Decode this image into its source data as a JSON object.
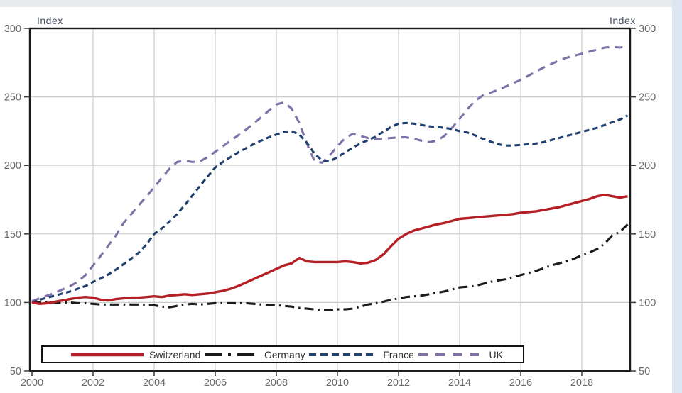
{
  "window": {
    "background": "#ffffff",
    "top_edge_color": "#e9eaed",
    "right_edge_color": "#dde5f0"
  },
  "chart_data": {
    "type": "line",
    "title": "",
    "y_label_left": "Index",
    "y_label_right": "Index",
    "x_ticks": [
      2000,
      2002,
      2004,
      2006,
      2008,
      2010,
      2012,
      2014,
      2016,
      2018
    ],
    "y_ticks": [
      50,
      100,
      150,
      200,
      250,
      300
    ],
    "x_range": [
      2000,
      2019.6
    ],
    "y_range": [
      50,
      300
    ],
    "grid": true,
    "legend_position": "bottom",
    "colors": {
      "grid": "#cccccc",
      "axis": "#1b1b1b",
      "tick": "#3a3a3a",
      "tick_label": "#6a6a6a",
      "axis_title": "#454e60",
      "legend_text": "#2f2f2f",
      "legend_border": "#111111"
    },
    "x": [
      2000,
      2000.25,
      2000.5,
      2000.75,
      2001,
      2001.25,
      2001.5,
      2001.75,
      2002,
      2002.25,
      2002.5,
      2002.75,
      2003,
      2003.25,
      2003.5,
      2003.75,
      2004,
      2004.25,
      2004.5,
      2004.75,
      2005,
      2005.25,
      2005.5,
      2005.75,
      2006,
      2006.25,
      2006.5,
      2006.75,
      2007,
      2007.25,
      2007.5,
      2007.75,
      2008,
      2008.25,
      2008.5,
      2008.75,
      2009,
      2009.25,
      2009.5,
      2009.75,
      2010,
      2010.25,
      2010.5,
      2010.75,
      2011,
      2011.25,
      2011.5,
      2011.75,
      2012,
      2012.25,
      2012.5,
      2012.75,
      2013,
      2013.25,
      2013.5,
      2013.75,
      2014,
      2014.25,
      2014.5,
      2014.75,
      2015,
      2015.25,
      2015.5,
      2015.75,
      2016,
      2016.25,
      2016.5,
      2016.75,
      2017,
      2017.25,
      2017.5,
      2017.75,
      2018,
      2018.25,
      2018.5,
      2018.75,
      2019,
      2019.25,
      2019.5
    ],
    "series": [
      {
        "name": "Switzerland",
        "color": "#b42025",
        "style": "solid",
        "values": [
          100,
          99,
          99.5,
          100.5,
          101.5,
          102.5,
          103.5,
          104,
          103.5,
          102,
          101.5,
          102.5,
          103,
          103.5,
          103.5,
          104,
          104.5,
          104,
          105,
          105.5,
          106,
          105.5,
          106,
          106.5,
          107.5,
          108.5,
          110,
          112,
          114.5,
          117,
          119.5,
          122,
          124.5,
          127,
          128.5,
          132.5,
          130,
          129.5,
          129.5,
          129.5,
          129.5,
          130,
          129.5,
          128.5,
          129,
          131,
          135,
          141,
          146.5,
          150,
          152.5,
          154,
          155.5,
          157,
          158,
          159.5,
          161,
          161.5,
          162,
          162.5,
          163,
          163.5,
          164,
          164.5,
          165.5,
          166,
          166.5,
          167.5,
          168.5,
          169.5,
          171,
          172.5,
          174,
          175.5,
          177.5,
          178.5,
          177.5,
          176.5,
          177.5
        ]
      },
      {
        "name": "Germany",
        "color": "#1a1a1a",
        "style": "dash-dot",
        "values": [
          100,
          100,
          100.5,
          100,
          100,
          100,
          99.5,
          99.5,
          99,
          98.5,
          98.5,
          98.5,
          98.5,
          98.5,
          98.5,
          98,
          98,
          97,
          96.5,
          97.5,
          98.5,
          99,
          98.5,
          99,
          99.5,
          99.5,
          99.5,
          99.5,
          99.5,
          99,
          98.5,
          98,
          98,
          97.5,
          97,
          96,
          95.5,
          95,
          94.5,
          94.5,
          95,
          95,
          95.5,
          97,
          98.5,
          99.5,
          100.5,
          102,
          103,
          104,
          104.5,
          105,
          106,
          107,
          108,
          109.5,
          111,
          111.5,
          112,
          113.5,
          115,
          116,
          117,
          118.5,
          120,
          121.5,
          123,
          125,
          127,
          128.5,
          130,
          132,
          134.5,
          136.5,
          139,
          143,
          149,
          151.5,
          157
        ]
      },
      {
        "name": "France",
        "color": "#20406f",
        "style": "dashed",
        "values": [
          100,
          102,
          103.5,
          105,
          106.5,
          108,
          110,
          112,
          115,
          117.5,
          120.5,
          124,
          128,
          132,
          136.5,
          142.5,
          150,
          154,
          159,
          164.5,
          171,
          178,
          185,
          192,
          198.5,
          202.5,
          206,
          209.5,
          212.5,
          215.5,
          218,
          220.5,
          222.5,
          224.5,
          225,
          222.5,
          216.5,
          208.5,
          203.5,
          203,
          206,
          209.5,
          213,
          216,
          218.5,
          221,
          224.5,
          228,
          230.5,
          231,
          230.5,
          229.5,
          228.5,
          228,
          227.5,
          226.5,
          225,
          224,
          222,
          219.5,
          217.5,
          215.5,
          214.5,
          214.5,
          215,
          215.5,
          216,
          217,
          218.5,
          220,
          221.5,
          223,
          224.5,
          226,
          227.5,
          229.5,
          231.5,
          233.5,
          236.5
        ]
      },
      {
        "name": "UK",
        "color": "#8171a9",
        "style": "long-dash",
        "values": [
          101,
          103,
          105,
          107,
          109.5,
          112,
          115,
          120,
          127,
          134,
          141.5,
          149,
          158,
          164.5,
          171,
          177.5,
          184,
          191,
          197.5,
          202.5,
          203.5,
          202.5,
          203,
          206,
          210,
          214,
          218,
          222,
          226,
          230.5,
          235,
          240,
          244.5,
          246,
          241.5,
          231,
          216,
          203,
          202,
          207.5,
          214,
          220,
          223,
          221.5,
          220,
          219,
          219.5,
          220,
          220.5,
          220.5,
          219.5,
          218,
          217,
          218,
          221.5,
          227.5,
          234,
          241,
          247,
          251,
          253,
          255,
          257.5,
          260,
          262.5,
          265.5,
          268.5,
          271.5,
          274,
          276.5,
          278.5,
          280,
          281.5,
          283,
          284.5,
          286,
          286.5,
          286,
          287
        ]
      }
    ]
  }
}
